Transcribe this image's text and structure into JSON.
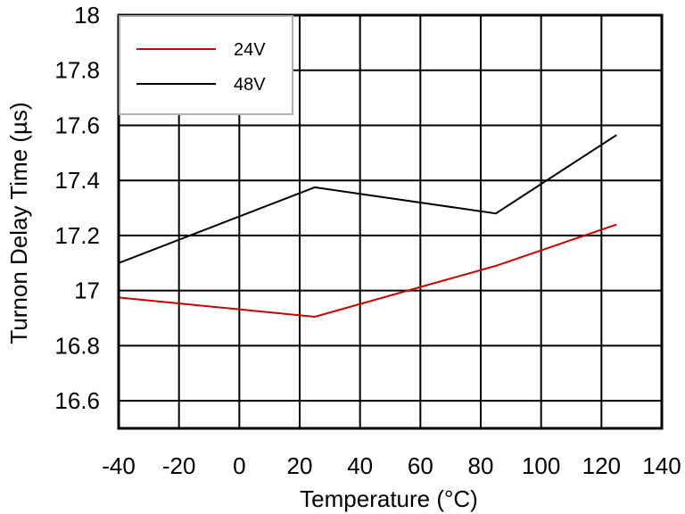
{
  "chart_data": {
    "type": "line",
    "title": "",
    "xlabel": "Temperature (°C)",
    "ylabel": "Turnon Delay Time (µs)",
    "xlim": [
      -40,
      140
    ],
    "ylim": [
      16.5,
      18
    ],
    "xticks": [
      -40,
      -20,
      0,
      20,
      40,
      60,
      80,
      100,
      120,
      140
    ],
    "xtick_labels": [
      "-40",
      "-20",
      "0",
      "20",
      "40",
      "60",
      "80",
      "100",
      "120",
      "140"
    ],
    "yticks": [
      16.6,
      16.8,
      17,
      17.2,
      17.4,
      17.6,
      17.8,
      18
    ],
    "ytick_labels": [
      "16.6",
      "16.8",
      "17",
      "17.2",
      "17.4",
      "17.6",
      "17.8",
      "18"
    ],
    "grid": true,
    "legend": "top-left",
    "series": [
      {
        "name": "24V",
        "color": "#cc0000",
        "x": [
          -40,
          25,
          85,
          125
        ],
        "y": [
          16.975,
          16.905,
          17.09,
          17.24
        ]
      },
      {
        "name": "48V",
        "color": "#000000",
        "x": [
          -40,
          25,
          85,
          125
        ],
        "y": [
          17.1,
          17.375,
          17.28,
          17.565
        ]
      }
    ]
  }
}
